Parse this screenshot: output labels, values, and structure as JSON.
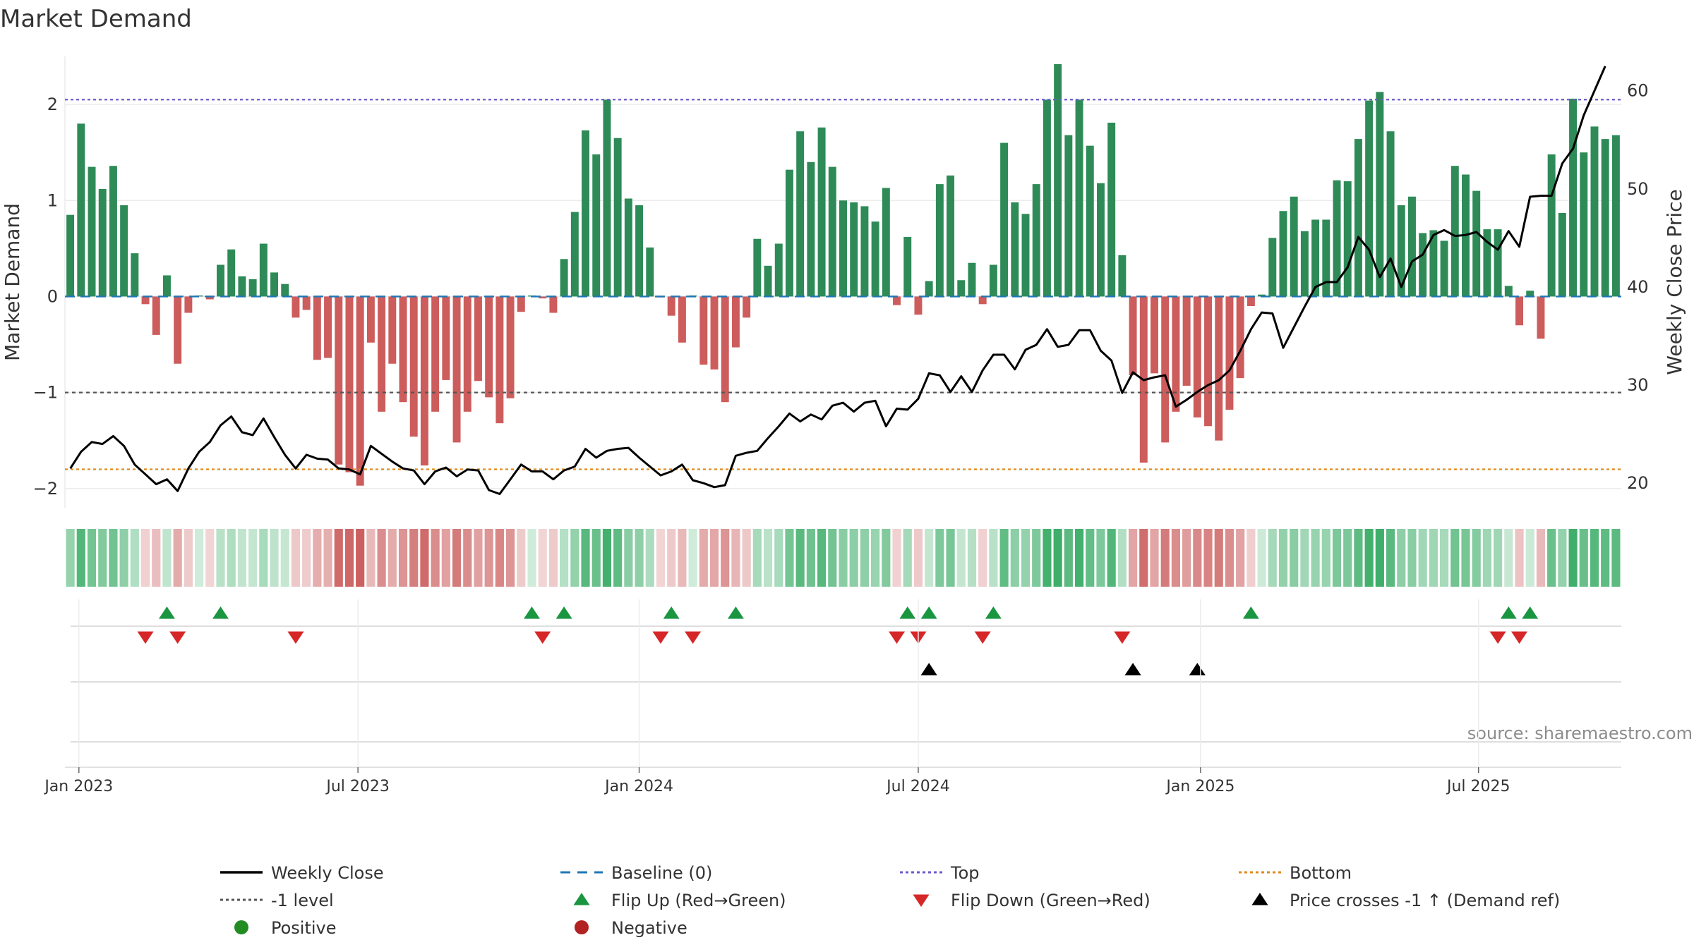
{
  "chart_data": {
    "type": "bar",
    "title": "Market Demand",
    "ylabel_left": "Market Demand",
    "ylabel_right": "Weekly Close Price",
    "source": "source: sharemaestro.com",
    "ylim_left": [
      -2.2,
      2.5
    ],
    "ylim_right": [
      17.5,
      63.5
    ],
    "yticks_left": [
      {
        "v": 2,
        "label": "2"
      },
      {
        "v": 1,
        "label": "1"
      },
      {
        "v": 0,
        "label": "0"
      },
      {
        "v": -1,
        "label": "−1"
      },
      {
        "v": -2,
        "label": "−2"
      }
    ],
    "yticks_right": [
      {
        "v": 60,
        "label": "60"
      },
      {
        "v": 50,
        "label": "50"
      },
      {
        "v": 40,
        "label": "40"
      },
      {
        "v": 30,
        "label": "30"
      },
      {
        "v": 20,
        "label": "20"
      }
    ],
    "date_ticks": [
      {
        "week": 0.8,
        "label": "Jan 2023"
      },
      {
        "week": 26.8,
        "label": "Jul 2023"
      },
      {
        "week": 53,
        "label": "Jan 2024"
      },
      {
        "week": 79,
        "label": "Jul 2024"
      },
      {
        "week": 105.3,
        "label": "Jan 2025"
      },
      {
        "week": 131.2,
        "label": "Jul 2025"
      }
    ],
    "reference_lines": {
      "top": 2.05,
      "bottom": -1.8,
      "minus_one": -1,
      "baseline": 0
    },
    "colors": {
      "positive_bar": "#2e8b57",
      "negative_bar": "#cd5c5c",
      "price": "#000000",
      "top": "#6a5acd",
      "bottom": "#e08a1e",
      "minus_one": "#555555",
      "baseline": "#1f77b4",
      "flip_up": "#1a9641",
      "flip_down": "#d62728",
      "cross": "#000000",
      "positive_dot": "#228b22",
      "negative_dot": "#b22222"
    },
    "demand": [
      0.85,
      1.8,
      1.35,
      1.12,
      1.36,
      0.95,
      0.45,
      -0.08,
      -0.4,
      0.22,
      -0.7,
      -0.17,
      0.01,
      -0.03,
      0.33,
      0.49,
      0.21,
      0.18,
      0.55,
      0.25,
      0.13,
      -0.22,
      -0.14,
      -0.66,
      -0.64,
      -1.75,
      -1.83,
      -1.97,
      -0.48,
      -1.2,
      -0.7,
      -1.1,
      -1.46,
      -1.76,
      -1.2,
      -0.87,
      -1.52,
      -1.2,
      -0.88,
      -1.05,
      -1.32,
      -1.06,
      -0.16,
      0.01,
      -0.02,
      -0.17,
      0.39,
      0.88,
      1.73,
      1.48,
      2.05,
      1.65,
      1.02,
      0.95,
      0.51,
      -0.01,
      -0.2,
      -0.48,
      0.01,
      -0.71,
      -0.76,
      -1.1,
      -0.53,
      -0.22,
      0.6,
      0.32,
      0.55,
      1.32,
      1.72,
      1.4,
      1.76,
      1.35,
      1.0,
      0.98,
      0.94,
      0.78,
      1.13,
      -0.09,
      0.62,
      -0.19,
      0.16,
      1.17,
      1.26,
      0.17,
      0.35,
      -0.08,
      0.33,
      1.6,
      0.98,
      0.86,
      1.17,
      2.05,
      2.42,
      1.68,
      2.05,
      1.57,
      1.18,
      1.81,
      0.43,
      -0.82,
      -1.73,
      -0.8,
      -1.52,
      -1.2,
      -0.93,
      -1.26,
      -1.35,
      -1.5,
      -1.18,
      -0.85,
      -0.1,
      0.02,
      0.61,
      0.89,
      1.04,
      0.68,
      0.8,
      0.8,
      1.21,
      1.2,
      1.64,
      2.04,
      2.13,
      1.72,
      0.95,
      1.04,
      0.66,
      0.69,
      0.58,
      1.36,
      1.27,
      1.1,
      0.7,
      0.7,
      0.11,
      -0.3,
      0.06,
      -0.44,
      1.48,
      0.87,
      2.06,
      1.5,
      1.77,
      1.64,
      1.68
    ],
    "price": [
      21.5,
      23.2,
      24.2,
      24,
      24.8,
      23.8,
      21.9,
      20.9,
      19.9,
      20.4,
      19.2,
      21.5,
      23.2,
      24.2,
      25.9,
      26.8,
      25.2,
      24.9,
      26.6,
      24.7,
      22.9,
      21.5,
      22.9,
      22.5,
      22.4,
      21.5,
      21.4,
      20.9,
      23.8,
      23,
      22.2,
      21.5,
      21.3,
      19.9,
      21.2,
      21.6,
      20.7,
      21.4,
      21.3,
      19.3,
      18.9,
      20.4,
      21.9,
      21.2,
      21.2,
      20.4,
      21.3,
      21.7,
      23.5,
      22.6,
      23.3,
      23.5,
      23.6,
      22.6,
      21.7,
      20.8,
      21.2,
      21.9,
      20.3,
      20,
      19.6,
      19.8,
      22.8,
      23.1,
      23.3,
      24.6,
      25.8,
      27.1,
      26.3,
      27,
      26.5,
      27.9,
      28.2,
      27.3,
      28.2,
      28.4,
      25.8,
      27.6,
      27.5,
      28.6,
      31.2,
      31,
      29.3,
      30.9,
      29.3,
      31.5,
      33.1,
      33.1,
      31.6,
      33.6,
      34.1,
      35.7,
      33.9,
      34.1,
      35.6,
      35.6,
      33.5,
      32.5,
      29.2,
      31.3,
      30.5,
      30.8,
      31,
      27.8,
      28.5,
      29.3,
      30,
      30.5,
      31.5,
      33.5,
      35.7,
      37.4,
      37.3,
      33.8,
      35.9,
      38,
      40,
      40.5,
      40.5,
      42,
      45.1,
      43.8,
      41,
      42.9,
      40,
      42.6,
      43.3,
      45.3,
      45.8,
      45.2,
      45.3,
      45.6,
      44.6,
      43.8,
      45.7,
      44.1,
      49.2,
      49.3,
      49.3,
      52.6,
      54.1,
      57.5,
      60,
      62.5
    ],
    "flip_up": [
      9,
      14,
      43,
      46,
      56,
      62,
      78,
      80,
      86,
      110,
      134,
      136
    ],
    "flip_down": [
      7,
      10,
      21,
      44,
      55,
      58,
      77,
      79,
      85,
      98,
      133,
      135
    ],
    "price_cross": [
      80,
      99,
      105
    ]
  },
  "legend": [
    {
      "key": "price",
      "label": "Weekly Close",
      "swatch": "solid-line",
      "color": "#000000"
    },
    {
      "key": "baseline",
      "label": "Baseline (0)",
      "swatch": "dash-line",
      "color": "#1f77b4"
    },
    {
      "key": "top",
      "label": "Top",
      "swatch": "dot-line",
      "color": "#6a5acd"
    },
    {
      "key": "bottom",
      "label": "Bottom",
      "swatch": "dot-line",
      "color": "#e08a1e"
    },
    {
      "key": "minus_one",
      "label": "-1 level",
      "swatch": "dot-line",
      "color": "#555555"
    },
    {
      "key": "flip_up",
      "label": "Flip Up (Red→Green)",
      "swatch": "tri-up",
      "color": "#1a9641"
    },
    {
      "key": "flip_down",
      "label": "Flip Down (Green→Red)",
      "swatch": "tri-down",
      "color": "#d62728"
    },
    {
      "key": "cross",
      "label": "Price crosses -1 ↑ (Demand ref)",
      "swatch": "tri-up",
      "color": "#000000"
    },
    {
      "key": "positive",
      "label": "Positive",
      "swatch": "dot",
      "color": "#228b22"
    },
    {
      "key": "negative",
      "label": "Negative",
      "swatch": "dot",
      "color": "#b22222"
    }
  ]
}
